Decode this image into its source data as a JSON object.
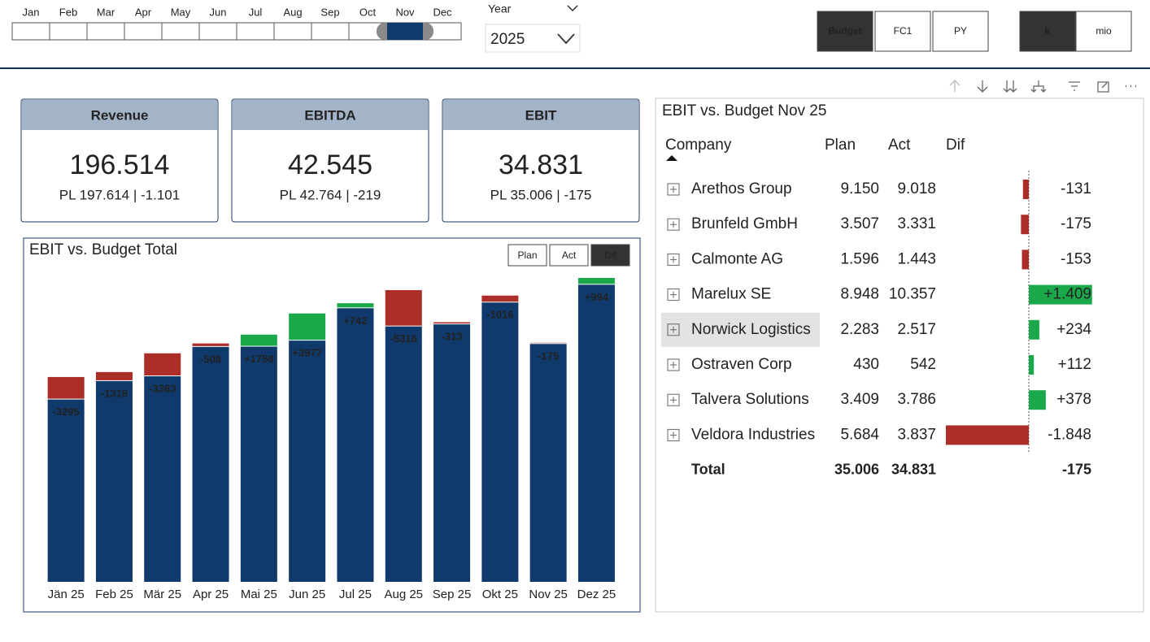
{
  "slicer": {
    "months": [
      "Jan",
      "Feb",
      "Mar",
      "Apr",
      "May",
      "Jun",
      "Jul",
      "Aug",
      "Sep",
      "Oct",
      "Nov",
      "Dec"
    ],
    "selected": 10
  },
  "year": {
    "label": "Year",
    "value": "2025"
  },
  "scenario_buttons": {
    "labels": [
      "Budget",
      "FC1",
      "PY"
    ],
    "selected": 0
  },
  "unit_buttons": {
    "labels": [
      "k",
      "mio"
    ],
    "selected": 0
  },
  "kpis": [
    {
      "title": "Revenue",
      "value": "196.514",
      "comparison": "PL 197.614 | -1.101"
    },
    {
      "title": "EBITDA",
      "value": "42.545",
      "comparison": "PL 42.764 | -219"
    },
    {
      "title": "EBIT",
      "value": "34.831",
      "comparison": "PL 35.006 | -175"
    }
  ],
  "chart_data": {
    "type": "bar",
    "title": "EBIT vs. Budget Total",
    "toggle": {
      "labels": [
        "Plan",
        "Act",
        "Dif"
      ],
      "selected": 2
    },
    "categories": [
      "Jän 25",
      "Feb 25",
      "Mär 25",
      "Apr 25",
      "Mai 25",
      "Jun 25",
      "Jul 25",
      "Aug 25",
      "Sep 25",
      "Okt 25",
      "Nov 25",
      "Dez 25"
    ],
    "values": [
      26700,
      29400,
      30100,
      34400,
      36200,
      39300,
      40800,
      37400,
      37700,
      40900,
      34831,
      44500
    ],
    "color": "#0f3a6b",
    "dif": {
      "values": [
        -3295,
        -1318,
        -3363,
        -508,
        1758,
        3977,
        742,
        -5316,
        -313,
        -1016,
        -175,
        994
      ],
      "value_labels": [
        "-3295",
        "-1318",
        "-3363",
        "-508",
        "+1758",
        "+3977",
        "+742",
        "-5316",
        "-313",
        "-1016",
        "-175",
        "+994"
      ],
      "colors": {
        "negative": "#ab2f28",
        "positive": "#1aa84a"
      }
    }
  },
  "table": {
    "title": "EBIT vs. Budget Nov 25",
    "columns": [
      "Company",
      "Plan",
      "Act",
      "Dif"
    ],
    "rows": [
      {
        "company": "Arethos Group",
        "plan": "9.150",
        "act": "9.018"
      },
      {
        "company": "Brunfeld GmbH",
        "plan": "3.507",
        "act": "3.331"
      },
      {
        "company": "Calmonte AG",
        "plan": "1.596",
        "act": "1.443"
      },
      {
        "company": "Marelux SE",
        "plan": "8.948",
        "act": "10.357"
      },
      {
        "company": "Norwick Logistics",
        "plan": "2.283",
        "act": "2.517"
      },
      {
        "company": "Ostraven Corp",
        "plan": "430",
        "act": "542"
      },
      {
        "company": "Talvera Solutions",
        "plan": "3.409",
        "act": "3.786"
      },
      {
        "company": "Veldora Industries",
        "plan": "5.684",
        "act": "3.837"
      }
    ],
    "dif": {
      "values": [
        -131,
        -175,
        -153,
        1409,
        234,
        112,
        378,
        -1848
      ],
      "value_labels": [
        "-131",
        "-175",
        "-153",
        "+1.409",
        "+234",
        "+112",
        "+378",
        "-1.848"
      ],
      "colors": {
        "negative": "#ab2f28",
        "positive": "#1aa84a"
      }
    },
    "highlighted_row": 4,
    "total": {
      "label": "Total",
      "plan": "35.006",
      "act": "34.831",
      "dif": "-175"
    }
  }
}
